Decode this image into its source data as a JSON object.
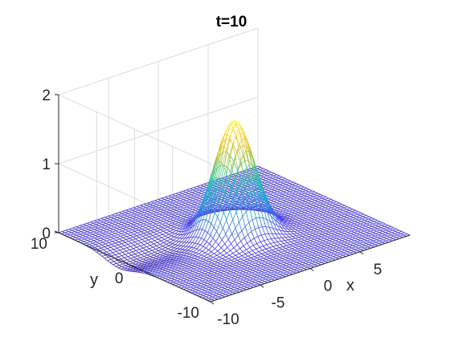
{
  "chart_data": {
    "type": "surface",
    "title": "t=10",
    "xlabel": "x",
    "ylabel": "y",
    "zlabel": "",
    "xlim": [
      -10,
      10
    ],
    "ylim": [
      -10,
      10
    ],
    "zlim": [
      0,
      2
    ],
    "x_ticks": [
      -10,
      -5,
      0,
      5
    ],
    "x_tick_labels": [
      "-10",
      "-5",
      "0",
      "5"
    ],
    "y_ticks": [
      -10,
      0,
      10
    ],
    "y_tick_labels": [
      "-10",
      "0",
      "10"
    ],
    "z_ticks": [
      0,
      1,
      2
    ],
    "z_tick_labels": [
      "0",
      "1",
      "2"
    ],
    "grid": true,
    "colormap": "parula",
    "colormap_stops": [
      "#3e26a8",
      "#4745f2",
      "#2e8be6",
      "#17b5c8",
      "#3fcb91",
      "#bfc132",
      "#fcce2e",
      "#f9fb15"
    ],
    "peak": {
      "x": 0,
      "y": 0,
      "z": 1.65
    },
    "valley_ridge_z": -0.12
  }
}
